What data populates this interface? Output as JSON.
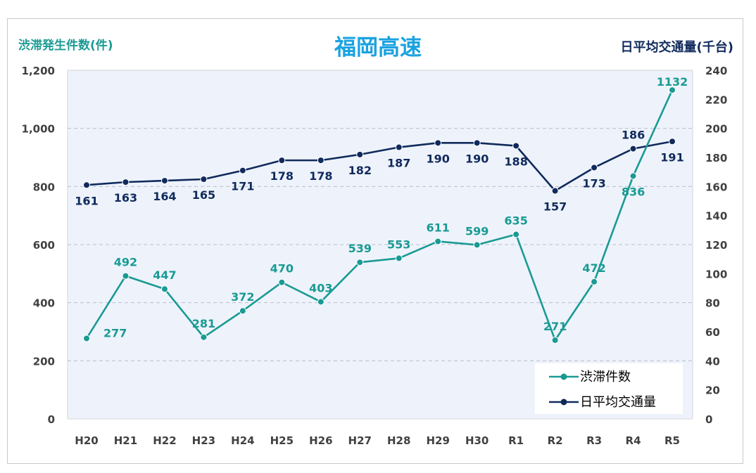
{
  "chart_data": {
    "type": "line",
    "title": "福岡高速",
    "ylabel_left": "渋滞発生件数(件)",
    "ylabel_right": "日平均交通量(千台)",
    "categories": [
      "H20",
      "H21",
      "H22",
      "H23",
      "H24",
      "H25",
      "H26",
      "H27",
      "H28",
      "H29",
      "H30",
      "R1",
      "R2",
      "R3",
      "R4",
      "R5"
    ],
    "y_left": {
      "min": 0,
      "max": 1200,
      "step": 200,
      "ticks": [
        "0",
        "200",
        "400",
        "600",
        "800",
        "1,000",
        "1,200"
      ]
    },
    "y_right": {
      "min": 0,
      "max": 240,
      "step": 20,
      "ticks": [
        "0",
        "20",
        "40",
        "60",
        "80",
        "100",
        "120",
        "140",
        "160",
        "180",
        "200",
        "220",
        "240"
      ]
    },
    "grid": true,
    "legend_position": "bottom-right",
    "series": [
      {
        "name": "渋滞件数",
        "axis": "left",
        "color": "#1a9a94",
        "values": [
          277,
          492,
          447,
          281,
          372,
          470,
          403,
          539,
          553,
          611,
          599,
          635,
          271,
          472,
          836,
          1132
        ]
      },
      {
        "name": "日平均交通量",
        "axis": "right",
        "color": "#102a5c",
        "values": [
          161,
          163,
          164,
          165,
          171,
          178,
          178,
          182,
          187,
          190,
          190,
          188,
          157,
          173,
          186,
          191
        ]
      }
    ]
  }
}
